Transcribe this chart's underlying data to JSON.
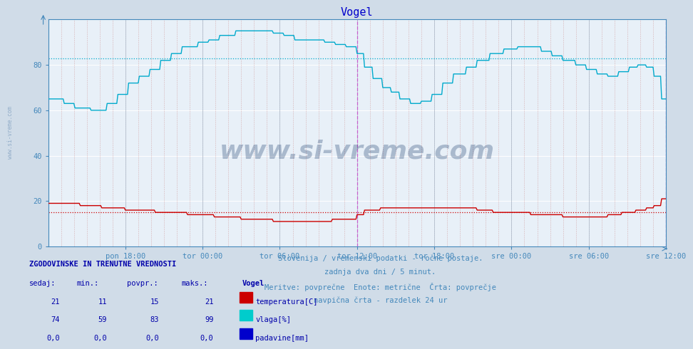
{
  "title": "Vogel",
  "title_color": "#0000cc",
  "bg_color": "#d0dce8",
  "plot_bg_color": "#e8f0f8",
  "grid_major_color": "#ffffff",
  "grid_minor_v_color": "#cc8888",
  "fig_width": 9.47,
  "fig_height": 4.94,
  "dpi": 100,
  "ylim": [
    0,
    100
  ],
  "yticks": [
    0,
    20,
    40,
    60,
    80
  ],
  "tick_labels_x": [
    "pon 18:00",
    "tor 00:00",
    "tor 06:00",
    "tor 12:00",
    "tor 18:00",
    "sre 00:00",
    "sre 06:00",
    "sre 12:00"
  ],
  "temp_avg": 15,
  "temp_avg_color": "#cc0000",
  "humidity_avg": 83,
  "humidity_avg_color": "#00aacc",
  "subtitle_lines": [
    "Slovenija / vremenski podatki - ročne postaje.",
    "zadnja dva dni / 5 minut.",
    "Meritve: povprečne  Enote: metrične  Črta: povprečje",
    "navpična črta - razdelek 24 ur"
  ],
  "subtitle_color": "#4488bb",
  "table_header": "ZGODOVINSKE IN TRENUTNE VREDNOSTI",
  "table_header_color": "#0000aa",
  "table_cols": [
    "sedaj:",
    "min.:",
    "povpr.:",
    "maks.:"
  ],
  "table_col_color": "#0000aa",
  "rows": [
    {
      "values": [
        "21",
        "11",
        "15",
        "21"
      ],
      "label": "temperatura[C]",
      "color": "#cc0000"
    },
    {
      "values": [
        "74",
        "59",
        "83",
        "99"
      ],
      "label": "vlaga[%]",
      "color": "#00cccc"
    },
    {
      "values": [
        "0,0",
        "0,0",
        "0,0",
        "0,0"
      ],
      "label": "padavine[mm]",
      "color": "#0000cc"
    }
  ],
  "station_label": "Vogel",
  "temp_line_color": "#cc0000",
  "humidity_line_color": "#00aacc",
  "vline_color": "#cc44cc",
  "tick_color": "#4488bb",
  "axis_color": "#4488bb",
  "watermark": "www.si-vreme.com",
  "watermark_color": "#1a3a6a",
  "watermark_alpha": 0.3,
  "side_text": "www.si-vreme.com",
  "side_text_color": "#7799bb",
  "side_text_alpha": 0.7
}
